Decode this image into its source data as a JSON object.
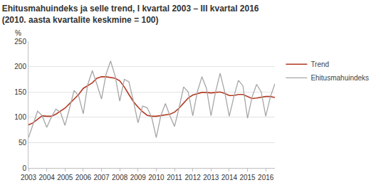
{
  "chart_data": {
    "type": "line",
    "title": "Ehitusmahuindeks ja selle trend, I kvartal 2003 – III kvartal 2016",
    "subtitle": "(2010. aasta kvartalite keskmine = 100)",
    "ylabel": "%",
    "categories": [
      "2003",
      null,
      null,
      null,
      "2004",
      null,
      null,
      null,
      "2005",
      null,
      null,
      null,
      "2006",
      null,
      null,
      null,
      "2007",
      null,
      null,
      null,
      "2008",
      null,
      null,
      null,
      "2009",
      null,
      null,
      null,
      "2010",
      null,
      null,
      null,
      "2011",
      null,
      null,
      null,
      "2012",
      null,
      null,
      null,
      "2013",
      null,
      null,
      null,
      "2014",
      null,
      null,
      null,
      "2015",
      null,
      null,
      null,
      "2016",
      null,
      null
    ],
    "series": [
      {
        "name": "Trend",
        "color": "#b33a22",
        "values": [
          85,
          89,
          96,
          103,
          102,
          102,
          106,
          112,
          118,
          127,
          136,
          145,
          157,
          162,
          168,
          177,
          180,
          180,
          179,
          177,
          172,
          160,
          145,
          131,
          120,
          111,
          104,
          102,
          102,
          103,
          105,
          106,
          110,
          118,
          128,
          138,
          144,
          147,
          149,
          149,
          148,
          149,
          150,
          147,
          143,
          143,
          145,
          145,
          141,
          137,
          138,
          140,
          141,
          141,
          139
        ]
      },
      {
        "name": "Ehitusmahuindeks",
        "color": "#a6a6a6",
        "values": [
          60,
          85,
          112,
          103,
          80,
          100,
          116,
          110,
          84,
          118,
          153,
          142,
          107,
          165,
          192,
          165,
          136,
          185,
          211,
          181,
          132,
          175,
          170,
          132,
          89,
          122,
          119,
          100,
          60,
          103,
          127,
          103,
          82,
          118,
          160,
          150,
          103,
          150,
          180,
          157,
          103,
          150,
          187,
          150,
          102,
          140,
          173,
          162,
          98,
          140,
          165,
          150,
          102,
          140,
          166
        ]
      }
    ],
    "ylim": [
      0,
      250
    ],
    "yticks": [
      0,
      50,
      100,
      150,
      200,
      250
    ],
    "grid": true,
    "legend": "right"
  }
}
